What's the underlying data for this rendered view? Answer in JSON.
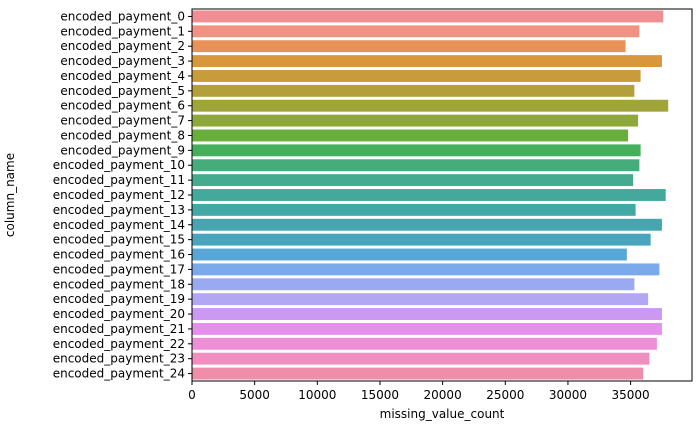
{
  "chart_data": {
    "type": "bar",
    "orientation": "horizontal",
    "xlabel": "missing_value_count",
    "ylabel": "column_name",
    "xlim": [
      0,
      39900
    ],
    "xticks": [
      0,
      5000,
      10000,
      15000,
      20000,
      25000,
      30000,
      35000
    ],
    "grid": false,
    "categories": [
      "encoded_payment_0",
      "encoded_payment_1",
      "encoded_payment_2",
      "encoded_payment_3",
      "encoded_payment_4",
      "encoded_payment_5",
      "encoded_payment_6",
      "encoded_payment_7",
      "encoded_payment_8",
      "encoded_payment_9",
      "encoded_payment_10",
      "encoded_payment_11",
      "encoded_payment_12",
      "encoded_payment_13",
      "encoded_payment_14",
      "encoded_payment_15",
      "encoded_payment_16",
      "encoded_payment_17",
      "encoded_payment_18",
      "encoded_payment_19",
      "encoded_payment_20",
      "encoded_payment_21",
      "encoded_payment_22",
      "encoded_payment_23",
      "encoded_payment_24"
    ],
    "values": [
      37600,
      35700,
      34600,
      37500,
      35800,
      35300,
      38000,
      35600,
      34800,
      35800,
      35700,
      35200,
      37800,
      35400,
      37500,
      36600,
      34700,
      37300,
      35300,
      36400,
      37500,
      37500,
      37100,
      36500,
      36000
    ],
    "colors": [
      "#f08f93",
      "#ef9383",
      "#ea9158",
      "#d8973a",
      "#c89c3b",
      "#b3a03b",
      "#a0a53a",
      "#8ea83a",
      "#67ae3a",
      "#45af5c",
      "#45ad7b",
      "#45ab8e",
      "#42a99c",
      "#43a7a6",
      "#45a6b0",
      "#48a5bc",
      "#58a6d6",
      "#7aa9ec",
      "#9aaaf2",
      "#b3a6f3",
      "#cb99f2",
      "#e48fec",
      "#ee8ed6",
      "#ef8ebf",
      "#ef8eaa"
    ]
  }
}
